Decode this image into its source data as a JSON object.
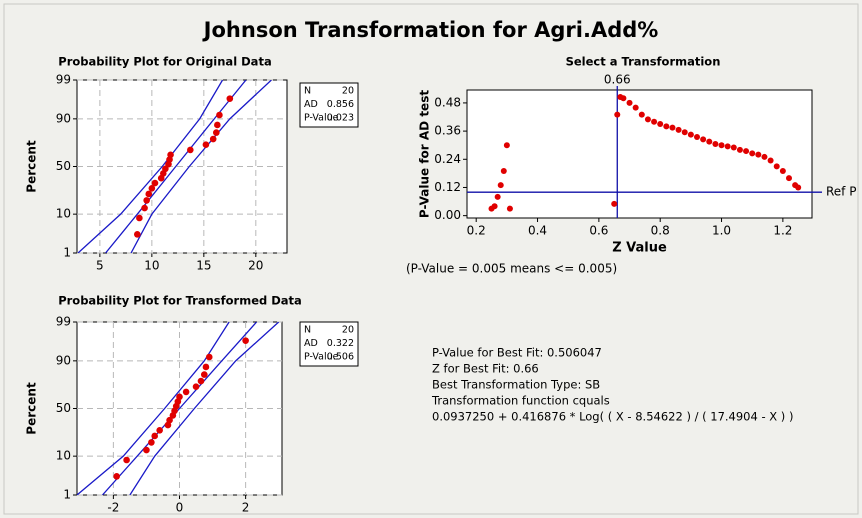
{
  "title": "Johnson Transformation for Agri.Add%",
  "chart_data": [
    {
      "type": "probability",
      "title": "Probability Plot for Original Data",
      "ylabel": "Percent",
      "x": [
        8.6,
        8.8,
        9.3,
        9.5,
        9.7,
        10.0,
        10.3,
        10.9,
        11.1,
        11.3,
        11.6,
        11.7,
        11.8,
        13.7,
        15.2,
        15.9,
        16.2,
        16.3,
        16.5,
        17.5
      ],
      "values": [
        3.4,
        8.3,
        13.2,
        18.1,
        23.0,
        27.9,
        32.8,
        37.7,
        42.6,
        47.5,
        52.5,
        57.4,
        62.3,
        67.2,
        72.1,
        77.0,
        81.9,
        86.8,
        91.7,
        96.6
      ],
      "color": "#e00000",
      "lines": [
        {
          "color": "#1a1ac8",
          "x": [
            2.9,
            7.0,
            11.0,
            14.6,
            16.8
          ],
          "values": [
            1,
            10,
            50,
            90,
            99
          ]
        },
        {
          "color": "#1a1ac8",
          "x": [
            5.55,
            8.6,
            12.3,
            16.0,
            19.05
          ],
          "values": [
            1,
            10,
            50,
            90,
            99
          ]
        },
        {
          "color": "#1a1ac8",
          "x": [
            8.0,
            10.0,
            13.6,
            17.5,
            21.5
          ],
          "values": [
            1,
            10,
            50,
            90,
            99
          ]
        }
      ],
      "xlim": [
        2.8,
        23
      ],
      "xticks": [
        5,
        10,
        15,
        20
      ],
      "ylim": [
        1,
        99
      ],
      "yticks": [
        1,
        10,
        50,
        90,
        99
      ],
      "grid": true,
      "stats": [
        {
          "label": "N",
          "value": 20
        },
        {
          "label": "AD",
          "value": 0.856
        },
        {
          "label": "P-Value",
          "value": 0.023
        }
      ]
    },
    {
      "type": "probability",
      "title": "Probability Plot for Transformed Data",
      "ylabel": "Percent",
      "x": [
        -1.9,
        -1.6,
        -1.0,
        -0.85,
        -0.75,
        -0.6,
        -0.35,
        -0.3,
        -0.2,
        -0.15,
        -0.1,
        -0.05,
        0.0,
        0.2,
        0.5,
        0.65,
        0.75,
        0.8,
        0.9,
        2.0
      ],
      "values": [
        3.4,
        8.3,
        13.2,
        18.1,
        23.0,
        27.9,
        32.8,
        37.7,
        42.6,
        47.5,
        52.5,
        57.4,
        62.3,
        67.2,
        72.1,
        77.0,
        81.9,
        86.8,
        91.7,
        96.6
      ],
      "color": "#e00000",
      "lines": [
        {
          "color": "#1a1ac8",
          "x": [
            -3.1,
            -1.7,
            -0.45,
            0.75,
            1.5
          ],
          "values": [
            1,
            10,
            50,
            90,
            99
          ]
        },
        {
          "color": "#1a1ac8",
          "x": [
            -2.33,
            -1.28,
            0,
            1.28,
            2.33
          ],
          "values": [
            1,
            10,
            50,
            90,
            99
          ]
        },
        {
          "color": "#1a1ac8",
          "x": [
            -1.5,
            -0.75,
            0.45,
            1.7,
            3.0
          ],
          "values": [
            1,
            10,
            50,
            90,
            99
          ]
        }
      ],
      "xlim": [
        -3.1,
        3.1
      ],
      "xticks": [
        -2,
        0,
        2
      ],
      "ylim": [
        1,
        99
      ],
      "yticks": [
        1,
        10,
        50,
        90,
        99
      ],
      "grid": true,
      "stats": [
        {
          "label": "N",
          "value": 20
        },
        {
          "label": "AD",
          "value": 0.322
        },
        {
          "label": "P-Value",
          "value": 0.506
        }
      ]
    },
    {
      "type": "scatter",
      "title": "Select a Transformation",
      "xlabel": "Z Value",
      "ylabel": "P-Value for AD test",
      "x": [
        0.25,
        0.26,
        0.27,
        0.28,
        0.29,
        0.3,
        0.31,
        0.65,
        0.66,
        0.67,
        0.68,
        0.7,
        0.72,
        0.74,
        0.76,
        0.78,
        0.8,
        0.82,
        0.84,
        0.86,
        0.88,
        0.9,
        0.92,
        0.94,
        0.96,
        0.98,
        1.0,
        1.02,
        1.04,
        1.06,
        1.08,
        1.1,
        1.12,
        1.14,
        1.16,
        1.18,
        1.2,
        1.22,
        1.24,
        1.25
      ],
      "values": [
        0.03,
        0.04,
        0.08,
        0.13,
        0.19,
        0.3,
        0.03,
        0.05,
        0.43,
        0.505,
        0.5,
        0.48,
        0.46,
        0.43,
        0.41,
        0.4,
        0.39,
        0.38,
        0.375,
        0.365,
        0.355,
        0.345,
        0.335,
        0.325,
        0.315,
        0.305,
        0.3,
        0.295,
        0.29,
        0.28,
        0.275,
        0.265,
        0.26,
        0.25,
        0.235,
        0.21,
        0.19,
        0.16,
        0.13,
        0.12
      ],
      "color": "#e00000",
      "xlim": [
        0.17,
        1.295
      ],
      "xticks": [
        0.2,
        0.4,
        0.6,
        0.8,
        {
          "value": 1,
          "label": "1.0"
        },
        1.2
      ],
      "ylim": [
        -0.01,
        0.535
      ],
      "yticks": [
        {
          "value": 0,
          "label": "0.00"
        },
        0.12,
        0.24,
        0.36,
        0.48
      ],
      "vline": 0.66,
      "hline": 0.1,
      "hline_label": "Ref P",
      "line_color": "#1010a8",
      "note": "(P-Value = 0.005 means <= 0.005)"
    }
  ],
  "summary": [
    "P-Value for Best Fit: 0.506047",
    "Z for Best Fit: 0.66",
    "Best Transformation Type: SB",
    "Transformation function cquals",
    "0.0937250 + 0.416876 * Log( ( X - 8.54622 ) / ( 17.4904 - X ) )"
  ]
}
